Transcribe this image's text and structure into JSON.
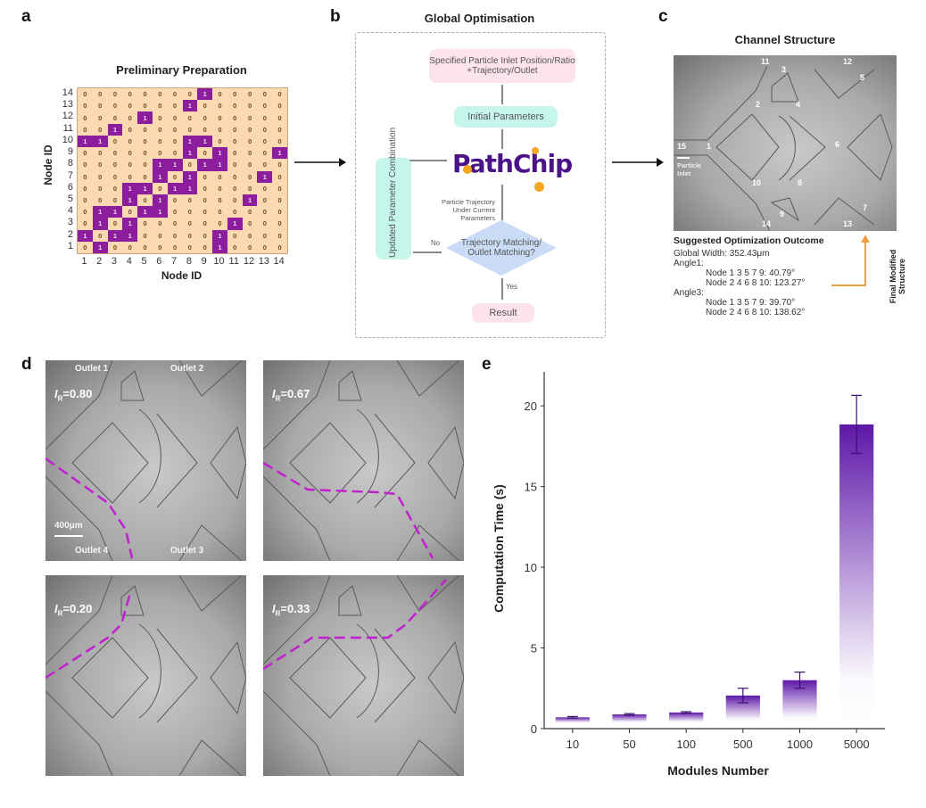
{
  "panels": {
    "a": {
      "label": "a",
      "title": "Preliminary Preparation",
      "ylabel": "Node ID",
      "xlabel": "Node ID"
    },
    "b": {
      "label": "b",
      "title": "Global Optimisation"
    },
    "c": {
      "label": "c",
      "title": "Channel Structure"
    },
    "d": {
      "label": "d"
    },
    "e": {
      "label": "e"
    }
  },
  "adjacency_matrix": {
    "node_ids": [
      1,
      2,
      3,
      4,
      5,
      6,
      7,
      8,
      9,
      10,
      11,
      12,
      13,
      14
    ],
    "rows_top_to_bottom": [
      {
        "node": 14,
        "values": [
          0,
          0,
          0,
          0,
          0,
          0,
          0,
          0,
          1,
          0,
          0,
          0,
          0,
          0
        ]
      },
      {
        "node": 13,
        "values": [
          0,
          0,
          0,
          0,
          0,
          0,
          0,
          1,
          0,
          0,
          0,
          0,
          0,
          0
        ]
      },
      {
        "node": 12,
        "values": [
          0,
          0,
          0,
          0,
          1,
          0,
          0,
          0,
          0,
          0,
          0,
          0,
          0,
          0
        ]
      },
      {
        "node": 11,
        "values": [
          0,
          0,
          1,
          0,
          0,
          0,
          0,
          0,
          0,
          0,
          0,
          0,
          0,
          0
        ]
      },
      {
        "node": 10,
        "values": [
          1,
          1,
          0,
          0,
          0,
          0,
          0,
          1,
          1,
          0,
          0,
          0,
          0,
          0
        ]
      },
      {
        "node": 9,
        "values": [
          0,
          0,
          0,
          0,
          0,
          0,
          0,
          1,
          0,
          1,
          0,
          0,
          0,
          1
        ]
      },
      {
        "node": 8,
        "values": [
          0,
          0,
          0,
          0,
          0,
          1,
          1,
          0,
          1,
          1,
          0,
          0,
          0,
          0
        ]
      },
      {
        "node": 7,
        "values": [
          0,
          0,
          0,
          0,
          0,
          1,
          0,
          1,
          0,
          0,
          0,
          0,
          1,
          0
        ]
      },
      {
        "node": 6,
        "values": [
          0,
          0,
          0,
          1,
          1,
          0,
          1,
          1,
          0,
          0,
          0,
          0,
          0,
          0
        ]
      },
      {
        "node": 5,
        "values": [
          0,
          0,
          0,
          1,
          0,
          1,
          0,
          0,
          0,
          0,
          0,
          1,
          0,
          0
        ]
      },
      {
        "node": 4,
        "values": [
          0,
          1,
          1,
          0,
          1,
          1,
          0,
          0,
          0,
          0,
          0,
          0,
          0,
          0
        ]
      },
      {
        "node": 3,
        "values": [
          0,
          1,
          0,
          1,
          0,
          0,
          0,
          0,
          0,
          0,
          1,
          0,
          0,
          0
        ]
      },
      {
        "node": 2,
        "values": [
          1,
          0,
          1,
          1,
          0,
          0,
          0,
          0,
          0,
          1,
          0,
          0,
          0,
          0
        ]
      },
      {
        "node": 1,
        "values": [
          0,
          1,
          0,
          0,
          0,
          0,
          0,
          0,
          0,
          1,
          0,
          0,
          0,
          0
        ]
      }
    ],
    "colors": {
      "zero": "#fcd9b0",
      "one": "#8c1e9e"
    }
  },
  "flowchart": {
    "input": "Specified Particle Inlet Position/Ratio +Trajectory/Outlet",
    "initial": "Initial Parameters",
    "logo": "PathChip",
    "trajectory_note": "Particle Trajectory Under Current Parameters",
    "decision": "Trajectory Matching/ Outlet Matching?",
    "no_label": "No",
    "yes_label": "Yes",
    "update": "Updated Parameter Combination",
    "result": "Result"
  },
  "channel": {
    "node_labels": [
      {
        "id": "11"
      },
      {
        "id": "3"
      },
      {
        "id": "12"
      },
      {
        "id": "5"
      },
      {
        "id": "2"
      },
      {
        "id": "4"
      },
      {
        "id": "15"
      },
      {
        "id": "1"
      },
      {
        "id": "6"
      },
      {
        "id": "10"
      },
      {
        "id": "8"
      },
      {
        "id": "9"
      },
      {
        "id": "7"
      },
      {
        "id": "14"
      },
      {
        "id": "13"
      }
    ],
    "inlet_label": "Particle Inlet",
    "outcome_title": "Suggested Optimization Outcome",
    "outcome_lines": [
      "Global Width: 352.43μm",
      "Angle1:",
      "Node 1 3 5 7 9: 40.79°",
      "Node 2 4 6 8 10: 123.27°",
      "Angle3:",
      "Node 1 3 5 7 9: 39.70°",
      "Node 2 4 6 8 10: 138.62°"
    ],
    "final_label": "Final Modified Structure"
  },
  "experiments": {
    "outlets": [
      "Outlet 1",
      "Outlet 2",
      "Outlet 3",
      "Outlet 4"
    ],
    "scale_bar": "400μm",
    "ratios": [
      {
        "prefix": "I",
        "sub": "R",
        "value": "=0.80"
      },
      {
        "prefix": "I",
        "sub": "R",
        "value": "=0.67"
      },
      {
        "prefix": "I",
        "sub": "R",
        "value": "=0.20"
      },
      {
        "prefix": "I",
        "sub": "R",
        "value": "=0.33"
      }
    ],
    "trajectory_color": "#c020d0"
  },
  "chart_data": {
    "type": "bar",
    "title": "",
    "xlabel": "Modules Number",
    "ylabel": "Computation Time (s)",
    "categories": [
      "10",
      "50",
      "100",
      "500",
      "1000",
      "5000"
    ],
    "values": [
      0.7,
      0.88,
      1.0,
      2.05,
      3.0,
      18.85
    ],
    "error_low": [
      0.65,
      0.83,
      0.95,
      1.6,
      2.5,
      17.05
    ],
    "error_high": [
      0.75,
      0.93,
      1.05,
      2.5,
      3.5,
      20.65
    ],
    "ylim": [
      0,
      21
    ],
    "yticks": [
      0,
      5,
      10,
      15,
      20
    ],
    "grid": false,
    "bar_color": "#5e17a8"
  }
}
